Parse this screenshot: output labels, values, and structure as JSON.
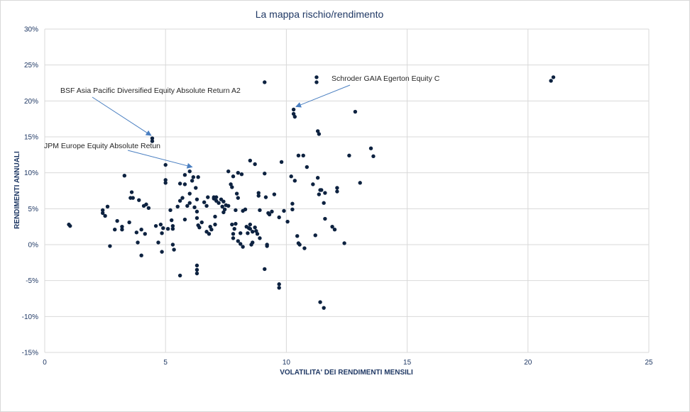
{
  "chart_data": {
    "type": "scatter",
    "title": "La mappa rischio/rendimento",
    "xlabel": "VOLATILITA' DEI RENDIMENTI MENSILI",
    "ylabel": "RENDIMENTI ANNUALI",
    "xlim": [
      0,
      25
    ],
    "ylim": [
      -15,
      30
    ],
    "xticks": [
      "0",
      "5",
      "10",
      "15",
      "20",
      "25"
    ],
    "yticks": [
      "-15%",
      "-10%",
      "-5%",
      "0%",
      "5%",
      "10%",
      "15%",
      "20%",
      "25%",
      "30%"
    ],
    "grid": true,
    "marker_color": "#0d2240",
    "annotations": [
      {
        "text": "BSF Asia Pacific Diversified Equity Absolute Return A2",
        "x": 4.4,
        "y": 15.2
      },
      {
        "text": "JPM Europe Equity Absolute Retun",
        "x": 6.1,
        "y": 10.8
      },
      {
        "text": "Schroder GAIA Egerton Equity C",
        "x": 10.4,
        "y": 19.2
      }
    ],
    "points": [
      [
        1.0,
        2.8
      ],
      [
        1.05,
        2.6
      ],
      [
        2.4,
        4.8
      ],
      [
        2.4,
        4.4
      ],
      [
        2.5,
        4.0
      ],
      [
        2.6,
        5.3
      ],
      [
        2.7,
        -0.2
      ],
      [
        2.9,
        2.1
      ],
      [
        3.0,
        3.3
      ],
      [
        3.2,
        2.5
      ],
      [
        3.2,
        2.1
      ],
      [
        3.3,
        9.6
      ],
      [
        3.5,
        3.1
      ],
      [
        3.55,
        6.5
      ],
      [
        3.6,
        7.3
      ],
      [
        3.65,
        6.5
      ],
      [
        3.8,
        1.7
      ],
      [
        3.85,
        0.3
      ],
      [
        3.9,
        6.2
      ],
      [
        4.0,
        -1.5
      ],
      [
        4.0,
        2.1
      ],
      [
        4.1,
        5.4
      ],
      [
        4.15,
        1.5
      ],
      [
        4.2,
        5.6
      ],
      [
        4.3,
        5.1
      ],
      [
        4.45,
        14.8
      ],
      [
        4.45,
        14.4
      ],
      [
        4.6,
        2.6
      ],
      [
        4.7,
        0.3
      ],
      [
        4.8,
        2.8
      ],
      [
        4.85,
        1.6
      ],
      [
        4.85,
        -1.0
      ],
      [
        4.9,
        2.3
      ],
      [
        5.0,
        8.6
      ],
      [
        5.0,
        9.0
      ],
      [
        5.0,
        11.1
      ],
      [
        5.1,
        2.2
      ],
      [
        5.2,
        4.8
      ],
      [
        5.25,
        3.4
      ],
      [
        5.3,
        2.6
      ],
      [
        5.3,
        2.2
      ],
      [
        5.3,
        0.0
      ],
      [
        5.35,
        -0.7
      ],
      [
        5.5,
        5.3
      ],
      [
        5.6,
        8.5
      ],
      [
        5.6,
        6.1
      ],
      [
        5.6,
        -4.3
      ],
      [
        5.7,
        6.5
      ],
      [
        5.8,
        9.7
      ],
      [
        5.8,
        8.4
      ],
      [
        5.8,
        3.5
      ],
      [
        5.9,
        5.4
      ],
      [
        6.0,
        10.2
      ],
      [
        6.0,
        7.1
      ],
      [
        6.0,
        5.8
      ],
      [
        6.1,
        8.9
      ],
      [
        6.15,
        9.4
      ],
      [
        6.2,
        5.2
      ],
      [
        6.25,
        7.9
      ],
      [
        6.3,
        6.3
      ],
      [
        6.3,
        4.6
      ],
      [
        6.3,
        3.7
      ],
      [
        6.3,
        -2.9
      ],
      [
        6.3,
        -3.5
      ],
      [
        6.3,
        -4.0
      ],
      [
        6.35,
        9.4
      ],
      [
        6.35,
        2.7
      ],
      [
        6.4,
        2.4
      ],
      [
        6.5,
        3.1
      ],
      [
        6.6,
        5.9
      ],
      [
        6.7,
        1.8
      ],
      [
        6.7,
        5.4
      ],
      [
        6.75,
        6.6
      ],
      [
        6.8,
        1.5
      ],
      [
        6.85,
        2.5
      ],
      [
        6.9,
        2.1
      ],
      [
        7.0,
        6.4
      ],
      [
        7.0,
        6.6
      ],
      [
        7.05,
        2.8
      ],
      [
        7.05,
        3.9
      ],
      [
        7.1,
        6.1
      ],
      [
        7.1,
        6.6
      ],
      [
        7.2,
        5.8
      ],
      [
        7.3,
        6.3
      ],
      [
        7.35,
        5.3
      ],
      [
        7.4,
        4.5
      ],
      [
        7.4,
        6.0
      ],
      [
        7.45,
        4.9
      ],
      [
        7.5,
        5.5
      ],
      [
        7.6,
        5.4
      ],
      [
        7.6,
        10.2
      ],
      [
        7.7,
        8.4
      ],
      [
        7.75,
        8.0
      ],
      [
        7.8,
        9.5
      ],
      [
        7.75,
        2.8
      ],
      [
        7.8,
        1.5
      ],
      [
        7.8,
        0.9
      ],
      [
        7.85,
        2.2
      ],
      [
        7.9,
        4.8
      ],
      [
        7.9,
        2.9
      ],
      [
        7.95,
        7.1
      ],
      [
        8.0,
        10.0
      ],
      [
        8.0,
        6.5
      ],
      [
        8.0,
        0.5
      ],
      [
        8.1,
        0.1
      ],
      [
        8.1,
        1.6
      ],
      [
        8.15,
        9.8
      ],
      [
        8.2,
        -0.3
      ],
      [
        8.2,
        4.7
      ],
      [
        8.3,
        4.9
      ],
      [
        8.35,
        2.5
      ],
      [
        8.4,
        1.6
      ],
      [
        8.45,
        2.3
      ],
      [
        8.5,
        11.7
      ],
      [
        8.5,
        2.8
      ],
      [
        8.5,
        2.2
      ],
      [
        8.55,
        0.0
      ],
      [
        8.6,
        1.8
      ],
      [
        8.6,
        0.3
      ],
      [
        8.7,
        2.4
      ],
      [
        8.7,
        11.2
      ],
      [
        8.75,
        1.9
      ],
      [
        8.8,
        1.5
      ],
      [
        8.85,
        6.8
      ],
      [
        8.85,
        7.2
      ],
      [
        8.9,
        4.8
      ],
      [
        8.9,
        0.9
      ],
      [
        9.1,
        22.6
      ],
      [
        9.1,
        9.9
      ],
      [
        9.1,
        -3.4
      ],
      [
        9.15,
        6.6
      ],
      [
        9.2,
        -0.2
      ],
      [
        9.2,
        0.0
      ],
      [
        9.25,
        4.4
      ],
      [
        9.3,
        4.2
      ],
      [
        9.4,
        4.6
      ],
      [
        9.5,
        7.0
      ],
      [
        9.7,
        3.8
      ],
      [
        9.7,
        -5.5
      ],
      [
        9.7,
        -6.0
      ],
      [
        9.8,
        11.5
      ],
      [
        9.9,
        4.7
      ],
      [
        10.05,
        3.2
      ],
      [
        10.2,
        9.5
      ],
      [
        10.25,
        5.7
      ],
      [
        10.25,
        4.9
      ],
      [
        10.3,
        18.8
      ],
      [
        10.3,
        18.2
      ],
      [
        10.35,
        17.8
      ],
      [
        10.35,
        8.9
      ],
      [
        10.45,
        1.2
      ],
      [
        10.5,
        0.2
      ],
      [
        10.5,
        12.4
      ],
      [
        10.55,
        0.0
      ],
      [
        10.7,
        12.4
      ],
      [
        10.75,
        -0.5
      ],
      [
        10.85,
        10.8
      ],
      [
        11.1,
        8.4
      ],
      [
        11.2,
        1.3
      ],
      [
        11.25,
        23.3
      ],
      [
        11.25,
        22.6
      ],
      [
        11.3,
        9.3
      ],
      [
        11.3,
        15.8
      ],
      [
        11.35,
        15.4
      ],
      [
        11.35,
        7.0
      ],
      [
        11.4,
        7.6
      ],
      [
        11.45,
        7.6
      ],
      [
        11.55,
        5.8
      ],
      [
        11.6,
        7.2
      ],
      [
        11.6,
        3.6
      ],
      [
        11.4,
        -8.0
      ],
      [
        11.55,
        -8.8
      ],
      [
        11.9,
        2.5
      ],
      [
        12.0,
        2.1
      ],
      [
        12.1,
        7.4
      ],
      [
        12.1,
        7.9
      ],
      [
        12.4,
        0.2
      ],
      [
        12.6,
        12.4
      ],
      [
        12.85,
        18.5
      ],
      [
        13.05,
        8.6
      ],
      [
        13.5,
        13.4
      ],
      [
        13.6,
        12.3
      ],
      [
        20.95,
        22.8
      ],
      [
        21.05,
        23.3
      ]
    ]
  }
}
